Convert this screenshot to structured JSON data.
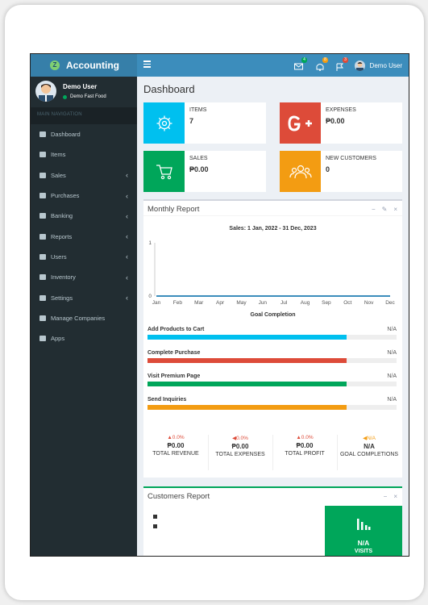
{
  "app": {
    "title": "Accounting",
    "logo_letter": "Z"
  },
  "topbar": {
    "mail_badge": "4",
    "bell_badge": "8",
    "flag_badge": "3",
    "user_name": "Demo User"
  },
  "sidebar": {
    "user_name": "Demo User",
    "company": "Demo Fast Food",
    "header": "MAIN NAVIGATION",
    "items": [
      {
        "label": "Dashboard",
        "chevron": false
      },
      {
        "label": "Items",
        "chevron": false
      },
      {
        "label": "Sales",
        "chevron": true
      },
      {
        "label": "Purchases",
        "chevron": true
      },
      {
        "label": "Banking",
        "chevron": true
      },
      {
        "label": "Reports",
        "chevron": true
      },
      {
        "label": "Users",
        "chevron": true
      },
      {
        "label": "Inventory",
        "chevron": true
      },
      {
        "label": "Settings",
        "chevron": true
      },
      {
        "label": "Manage Companies",
        "chevron": false
      },
      {
        "label": "Apps",
        "chevron": false
      }
    ]
  },
  "page": {
    "title": "Dashboard"
  },
  "infoboxes": [
    {
      "label": "ITEMS",
      "value": "7",
      "color": "#00c0ef",
      "icon": "gear-icon"
    },
    {
      "label": "EXPENSES",
      "value": "₱0.00",
      "color": "#dd4b39",
      "icon": "google-plus-icon"
    },
    {
      "label": "SALES",
      "value": "₱0.00",
      "color": "#00a65a",
      "icon": "cart-icon"
    },
    {
      "label": "NEW CUSTOMERS",
      "value": "0",
      "color": "#f39c12",
      "icon": "users-icon"
    }
  ],
  "monthly": {
    "title": "Monthly Report",
    "tools": {
      "minimize": "−",
      "wrench": "✎",
      "close": "×"
    },
    "goal_title": "Goal Completion",
    "goals": [
      {
        "label": "Add Products to Cart",
        "value": "N/A",
        "color": "#00c0ef",
        "fill": 0.8
      },
      {
        "label": "Complete Purchase",
        "value": "N/A",
        "color": "#dd4b39",
        "fill": 0.8
      },
      {
        "label": "Visit Premium Page",
        "value": "N/A",
        "color": "#00a65a",
        "fill": 0.8
      },
      {
        "label": "Send Inquiries",
        "value": "N/A",
        "color": "#f39c12",
        "fill": 0.8
      }
    ],
    "stats": [
      {
        "pct": "▲0.0%",
        "amount": "₱0.00",
        "name": "TOTAL REVENUE",
        "color": "#dd4b39"
      },
      {
        "pct": "◀0.0%",
        "amount": "₱0.00",
        "name": "TOTAL EXPENSES",
        "color": "#dd4b39"
      },
      {
        "pct": "▲0.0%",
        "amount": "₱0.00",
        "name": "TOTAL PROFIT",
        "color": "#dd4b39"
      },
      {
        "pct": "◀N/A",
        "amount": "N/A",
        "name": "GOAL COMPLETIONS",
        "color": "#f39c12"
      }
    ]
  },
  "customers": {
    "title": "Customers Report",
    "tools": {
      "minimize": "−",
      "close": "×"
    },
    "visits_value": "N/A",
    "visits_label": "VISITS"
  },
  "chart_data": {
    "type": "line",
    "title": "Sales: 1 Jan, 2022 - 31 Dec, 2023",
    "categories": [
      "Jan",
      "Feb",
      "Mar",
      "Apr",
      "May",
      "Jun",
      "Jul",
      "Aug",
      "Sep",
      "Oct",
      "Nov",
      "Dec"
    ],
    "series": [
      {
        "values": [
          0,
          0,
          0,
          0,
          0,
          0,
          0,
          0,
          0,
          0,
          0,
          0
        ],
        "color": "#3c8dbc"
      }
    ],
    "ylim": [
      0,
      1
    ],
    "yticks": [
      "1",
      "0"
    ],
    "grid": false
  }
}
